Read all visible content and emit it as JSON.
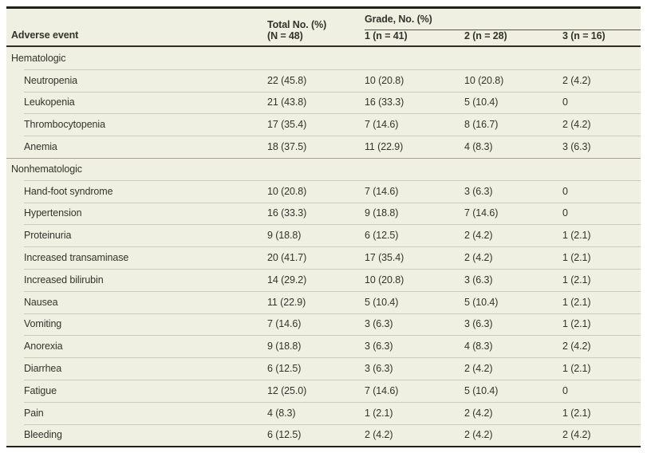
{
  "colors": {
    "table_background": "#eff0e2",
    "heavy_rule": "#21201b",
    "header_rule": "#2f2d26",
    "item_separator": "#cbcbbd",
    "section_separator": "#a3a294",
    "text": "#33332b"
  },
  "table": {
    "header": {
      "adverse_event": "Adverse event",
      "total_line1": "Total No. (%)",
      "total_line2": "(N = 48)",
      "grade_group": "Grade, No. (%)",
      "grade_cols": [
        "1 (n = 41)",
        "2 (n = 28)",
        "3 (n = 16)"
      ]
    },
    "rows": [
      {
        "type": "section",
        "label": "Hematologic",
        "total": "",
        "g1": "",
        "g2": "",
        "g3": ""
      },
      {
        "type": "item",
        "label": "Neutropenia",
        "total": "22 (45.8)",
        "g1": "10 (20.8)",
        "g2": "10 (20.8)",
        "g3": "2 (4.2)"
      },
      {
        "type": "item",
        "label": "Leukopenia",
        "total": "21 (43.8)",
        "g1": "16 (33.3)",
        "g2": "5 (10.4)",
        "g3": "0"
      },
      {
        "type": "item",
        "label": "Thrombocytopenia",
        "total": "17 (35.4)",
        "g1": "7 (14.6)",
        "g2": "8 (16.7)",
        "g3": "2 (4.2)"
      },
      {
        "type": "item",
        "label": "Anemia",
        "total": "18 (37.5)",
        "g1": "11 (22.9)",
        "g2": "4 (8.3)",
        "g3": "3 (6.3)"
      },
      {
        "type": "section",
        "label": "Nonhematologic",
        "total": "",
        "g1": "",
        "g2": "",
        "g3": ""
      },
      {
        "type": "item",
        "label": "Hand-foot syndrome",
        "total": "10 (20.8)",
        "g1": "7 (14.6)",
        "g2": "3 (6.3)",
        "g3": "0"
      },
      {
        "type": "item",
        "label": "Hypertension",
        "total": "16 (33.3)",
        "g1": "9 (18.8)",
        "g2": "7 (14.6)",
        "g3": "0"
      },
      {
        "type": "item",
        "label": "Proteinuria",
        "total": "9 (18.8)",
        "g1": "6 (12.5)",
        "g2": "2 (4.2)",
        "g3": "1 (2.1)"
      },
      {
        "type": "item",
        "label": "Increased transaminase",
        "total": "20 (41.7)",
        "g1": "17 (35.4)",
        "g2": "2 (4.2)",
        "g3": "1 (2.1)"
      },
      {
        "type": "item",
        "label": "Increased bilirubin",
        "total": "14 (29.2)",
        "g1": "10 (20.8)",
        "g2": "3 (6.3)",
        "g3": "1 (2.1)"
      },
      {
        "type": "item",
        "label": "Nausea",
        "total": "11 (22.9)",
        "g1": "5 (10.4)",
        "g2": "5 (10.4)",
        "g3": "1 (2.1)"
      },
      {
        "type": "item",
        "label": "Vomiting",
        "total": "7 (14.6)",
        "g1": "3 (6.3)",
        "g2": "3 (6.3)",
        "g3": "1 (2.1)"
      },
      {
        "type": "item",
        "label": "Anorexia",
        "total": "9 (18.8)",
        "g1": "3 (6.3)",
        "g2": "4 (8.3)",
        "g3": "2 (4.2)"
      },
      {
        "type": "item",
        "label": "Diarrhea",
        "total": "6 (12.5)",
        "g1": "3 (6.3)",
        "g2": "2 (4.2)",
        "g3": "1 (2.1)"
      },
      {
        "type": "item",
        "label": "Fatigue",
        "total": "12 (25.0)",
        "g1": "7 (14.6)",
        "g2": "5 (10.4)",
        "g3": "0"
      },
      {
        "type": "item",
        "label": "Pain",
        "total": "4 (8.3)",
        "g1": "1 (2.1)",
        "g2": "2 (4.2)",
        "g3": "1 (2.1)"
      },
      {
        "type": "item",
        "label": "Bleeding",
        "total": "6 (12.5)",
        "g1": "2 (4.2)",
        "g2": "2 (4.2)",
        "g3": "2 (4.2)"
      }
    ]
  }
}
